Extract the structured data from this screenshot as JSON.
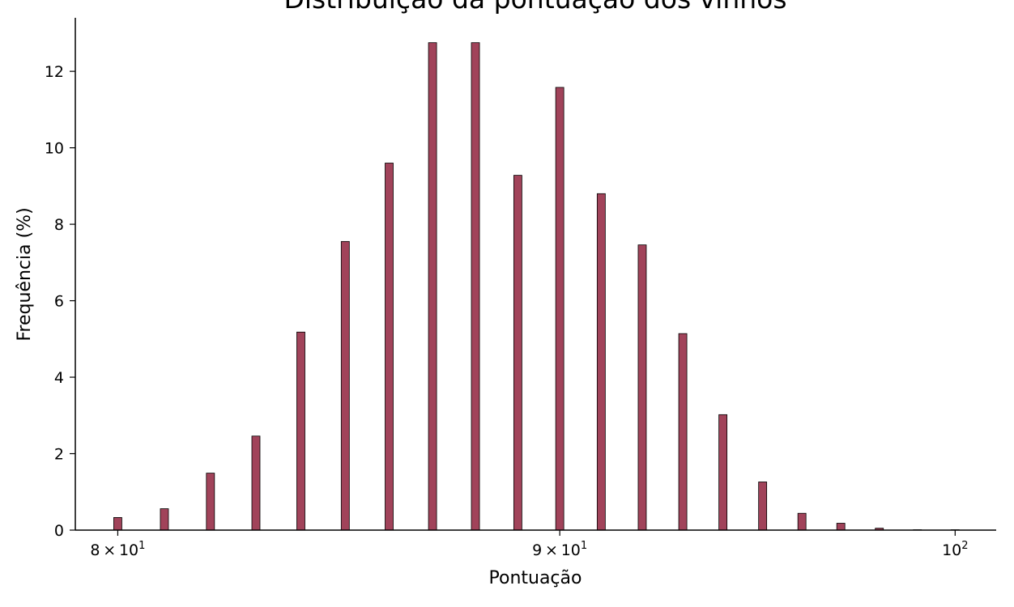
{
  "chart_data": {
    "type": "bar",
    "title": "Distribuição da pontuação dos vinhos",
    "xlabel": "Pontuação",
    "ylabel": "Frequência (%)",
    "x_scale": "log",
    "xlim": [
      79.1,
      101.1
    ],
    "ylim": [
      0,
      13.4
    ],
    "x_ticks": [
      {
        "value": 80,
        "label": "8×10¹",
        "mantissa": "8",
        "base": "10",
        "exp": "1"
      },
      {
        "value": 90,
        "label": "9×10¹",
        "mantissa": "9",
        "base": "10",
        "exp": "1"
      },
      {
        "value": 100,
        "label": "10²",
        "mantissa": "",
        "base": "10",
        "exp": "2"
      }
    ],
    "y_ticks": [
      0,
      2,
      4,
      6,
      8,
      10,
      12
    ],
    "grid": false,
    "bar_color": "#a1435a",
    "bar_edge_color": "#000000",
    "x": [
      80,
      81,
      82,
      83,
      84,
      85,
      86,
      87,
      88,
      89,
      90,
      91,
      92,
      93,
      94,
      95,
      96,
      97,
      98,
      99,
      100
    ],
    "values": [
      0.33,
      0.56,
      1.49,
      2.46,
      5.18,
      7.55,
      9.6,
      12.75,
      12.75,
      9.28,
      11.58,
      8.8,
      7.46,
      5.14,
      3.02,
      1.26,
      0.44,
      0.18,
      0.05,
      0.01,
      0.01
    ]
  }
}
